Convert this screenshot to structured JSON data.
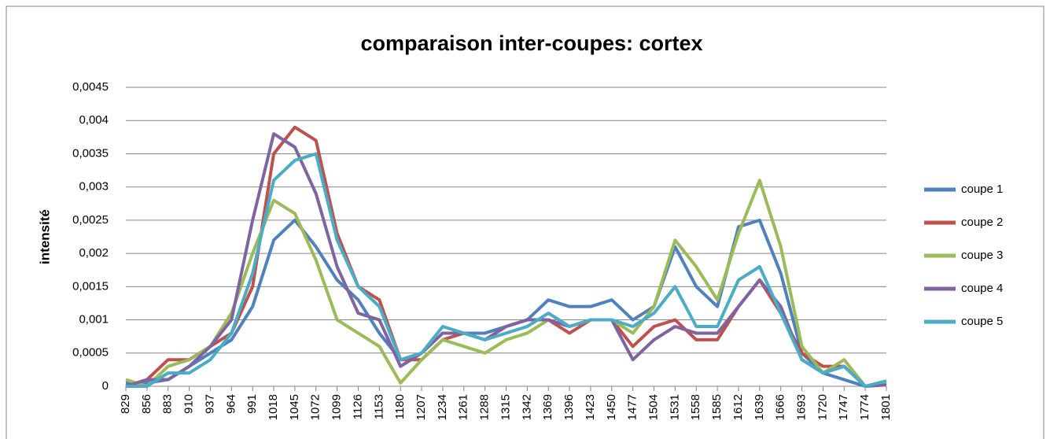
{
  "chart_data": {
    "type": "line",
    "title": "comparaison inter-coupes: cortex",
    "y_label": "intensité",
    "x": [
      829,
      856,
      883,
      910,
      937,
      964,
      991,
      1018,
      1045,
      1072,
      1099,
      1126,
      1153,
      1180,
      1207,
      1234,
      1261,
      1288,
      1315,
      1342,
      1369,
      1396,
      1423,
      1450,
      1477,
      1504,
      1531,
      1558,
      1585,
      1612,
      1639,
      1666,
      1693,
      1720,
      1747,
      1774,
      1801
    ],
    "xlim": [
      829,
      1801
    ],
    "xticks": [
      829,
      856,
      883,
      910,
      937,
      964,
      991,
      1018,
      1045,
      1072,
      1099,
      1126,
      1153,
      1180,
      1207,
      1234,
      1261,
      1288,
      1315,
      1342,
      1369,
      1396,
      1423,
      1450,
      1477,
      1504,
      1531,
      1558,
      1585,
      1612,
      1639,
      1666,
      1693,
      1720,
      1747,
      1774,
      1801
    ],
    "ylim": [
      0,
      0.0045
    ],
    "yticks": [
      0,
      {
        "value": 0.0005,
        "label": "0,0005"
      },
      {
        "value": 0.001,
        "label": "0,001"
      },
      {
        "value": 0.0015,
        "label": "0,0015"
      },
      {
        "value": 0.002,
        "label": "0,002"
      },
      {
        "value": 0.0025,
        "label": "0,0025"
      },
      {
        "value": 0.003,
        "label": "0,003"
      },
      {
        "value": 0.0035,
        "label": "0,0035"
      },
      {
        "value": 0.004,
        "label": "0,004"
      },
      {
        "value": 0.0045,
        "label": "0,0045"
      }
    ],
    "grid": true,
    "legend": "right",
    "series": [
      {
        "name": "coupe 1",
        "color": "#4f81bd",
        "values": [
          5e-05,
          5e-05,
          0.0001,
          0.0003,
          0.0005,
          0.0007,
          0.0012,
          0.0022,
          0.0025,
          0.0021,
          0.0016,
          0.0013,
          0.0008,
          0.0004,
          0.0005,
          0.0008,
          0.0008,
          0.0008,
          0.0009,
          0.001,
          0.0013,
          0.0012,
          0.0012,
          0.0013,
          0.001,
          0.0012,
          0.0021,
          0.0015,
          0.0012,
          0.0024,
          0.0025,
          0.0017,
          0.0005,
          0.0002,
          0.0001,
          0,
          5e-05
        ]
      },
      {
        "name": "coupe 2",
        "color": "#c0504d",
        "values": [
          0,
          0.0001,
          0.0004,
          0.0004,
          0.0006,
          0.0008,
          0.0015,
          0.0035,
          0.0039,
          0.0037,
          0.0023,
          0.0015,
          0.0013,
          0.0004,
          0.0004,
          0.0007,
          0.0008,
          0.0007,
          0.0009,
          0.001,
          0.001,
          0.0008,
          0.001,
          0.001,
          0.0006,
          0.0009,
          0.001,
          0.0007,
          0.0007,
          0.0012,
          0.0016,
          0.0011,
          0.0005,
          0.0003,
          0.0003,
          0,
          5e-05
        ]
      },
      {
        "name": "coupe 3",
        "color": "#9bbb59",
        "values": [
          0.0001,
          0,
          0.0003,
          0.0004,
          0.0006,
          0.0011,
          0.002,
          0.0028,
          0.0026,
          0.0019,
          0.001,
          0.0008,
          0.0006,
          5e-05,
          0.0004,
          0.0007,
          0.0006,
          0.0005,
          0.0007,
          0.0008,
          0.001,
          0.0009,
          0.001,
          0.001,
          0.0008,
          0.0012,
          0.0022,
          0.0018,
          0.0013,
          0.0023,
          0.0031,
          0.0021,
          0.0006,
          0.0002,
          0.0004,
          0,
          5e-05
        ]
      },
      {
        "name": "coupe 4",
        "color": "#8064a2",
        "values": [
          0,
          0.0001,
          0.0001,
          0.0003,
          0.0006,
          0.001,
          0.0025,
          0.0038,
          0.0036,
          0.0029,
          0.0018,
          0.0011,
          0.001,
          0.0003,
          0.0005,
          0.0008,
          0.0008,
          0.0007,
          0.0009,
          0.001,
          0.001,
          0.0009,
          0.001,
          0.001,
          0.0004,
          0.0007,
          0.0009,
          0.0008,
          0.0008,
          0.0012,
          0.0016,
          0.0012,
          0.0004,
          0.0002,
          0.0003,
          0,
          2e-05
        ]
      },
      {
        "name": "coupe 5",
        "color": "#4bacc6",
        "values": [
          0,
          0,
          0.0002,
          0.0002,
          0.0004,
          0.0008,
          0.0017,
          0.0031,
          0.0034,
          0.0035,
          0.0022,
          0.0015,
          0.0012,
          0.0004,
          0.0005,
          0.0009,
          0.0008,
          0.0007,
          0.0008,
          0.0009,
          0.0011,
          0.0009,
          0.001,
          0.001,
          0.0009,
          0.0011,
          0.0015,
          0.0009,
          0.0009,
          0.0016,
          0.0018,
          0.0011,
          0.0004,
          0.0002,
          0.0003,
          0,
          8e-05
        ]
      }
    ]
  }
}
